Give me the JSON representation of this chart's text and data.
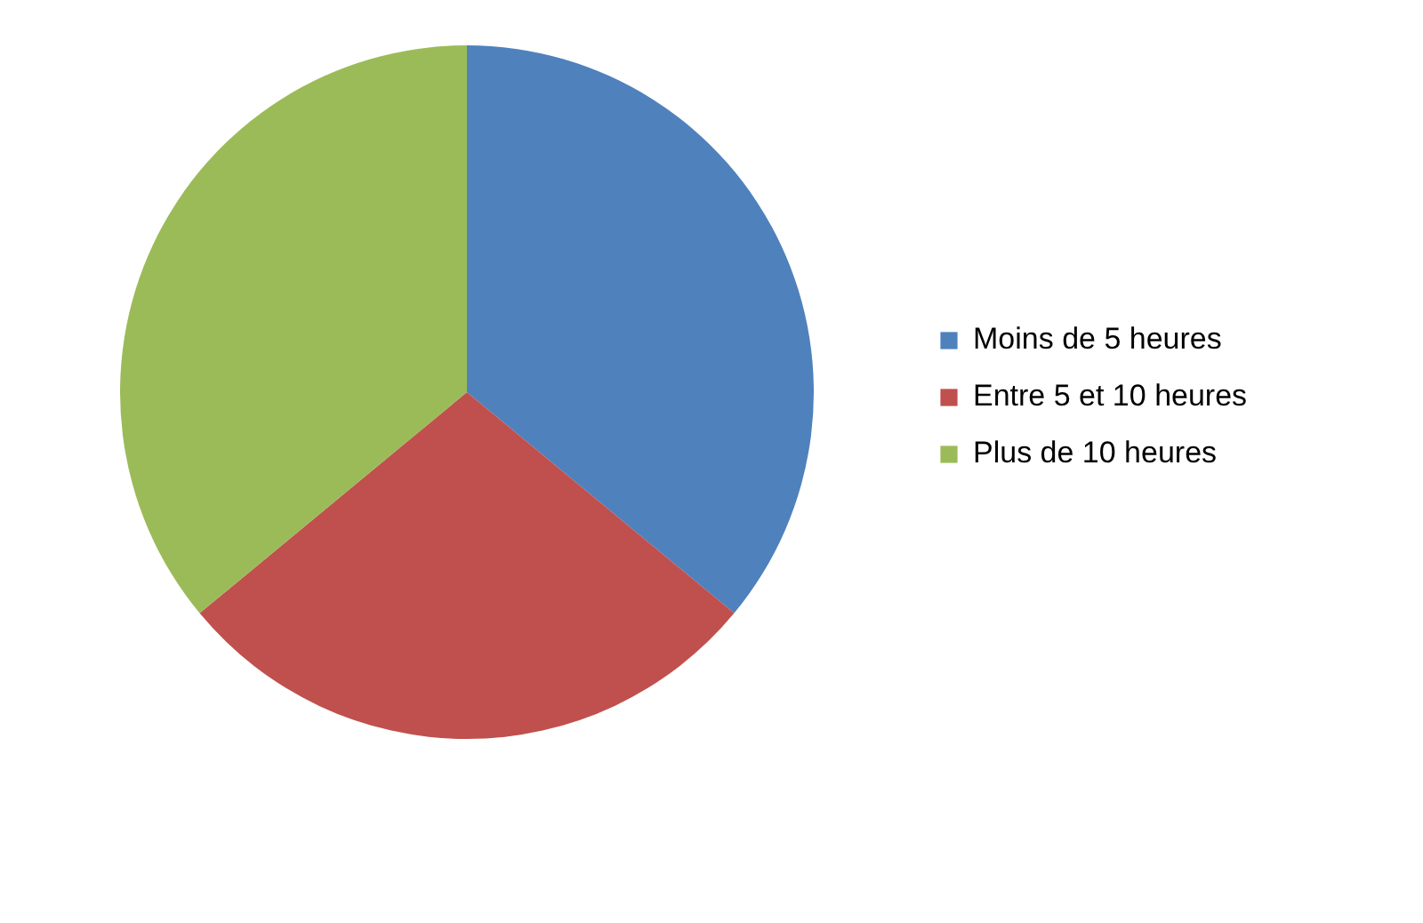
{
  "chart_data": {
    "type": "pie",
    "categories": [
      "Moins de 5 heures",
      "Entre 5 et 10 heures",
      "Plus de 10 heures"
    ],
    "values": [
      36,
      28,
      36
    ],
    "colors": [
      "#4f81bd",
      "#c0504d",
      "#9bbb59"
    ],
    "legend": "right"
  }
}
